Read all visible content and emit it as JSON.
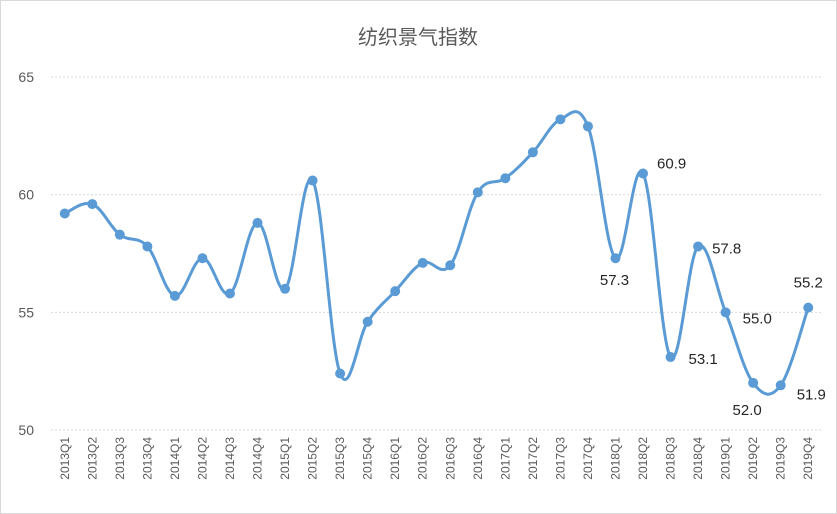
{
  "chart_data": {
    "type": "line",
    "title": "纺织景气指数",
    "xlabel": "",
    "ylabel": "",
    "ylim": [
      50,
      65
    ],
    "yticks": [
      50,
      55,
      60,
      65
    ],
    "grid": true,
    "smooth": true,
    "categories": [
      "2013Q1",
      "2013Q2",
      "2013Q3",
      "2013Q4",
      "2014Q1",
      "2014Q2",
      "2014Q3",
      "2014Q4",
      "2015Q1",
      "2015Q2",
      "2015Q3",
      "2015Q4",
      "2016Q1",
      "2016Q2",
      "2016Q3",
      "2016Q4",
      "2017Q1",
      "2017Q2",
      "2017Q3",
      "2017Q4",
      "2018Q1",
      "2018Q2",
      "2018Q3",
      "2018Q4",
      "2019Q1",
      "2019Q2",
      "2019Q3",
      "2019Q4"
    ],
    "series": [
      {
        "values": [
          59.2,
          59.6,
          58.3,
          57.8,
          55.7,
          57.3,
          55.8,
          58.8,
          56.0,
          60.6,
          52.4,
          54.6,
          55.9,
          57.1,
          57.0,
          60.1,
          60.7,
          61.8,
          63.2,
          62.9,
          57.3,
          60.9,
          53.1,
          57.8,
          55.0,
          52.0,
          51.9,
          55.2
        ],
        "color": "#5b9bd5"
      }
    ],
    "data_labels": [
      {
        "index": 20,
        "text": "57.3"
      },
      {
        "index": 21,
        "text": "60.9"
      },
      {
        "index": 22,
        "text": "53.1"
      },
      {
        "index": 23,
        "text": "57.8"
      },
      {
        "index": 24,
        "text": "55.0"
      },
      {
        "index": 25,
        "text": "52.0"
      },
      {
        "index": 26,
        "text": "51.9"
      },
      {
        "index": 27,
        "text": "55.2"
      }
    ]
  }
}
